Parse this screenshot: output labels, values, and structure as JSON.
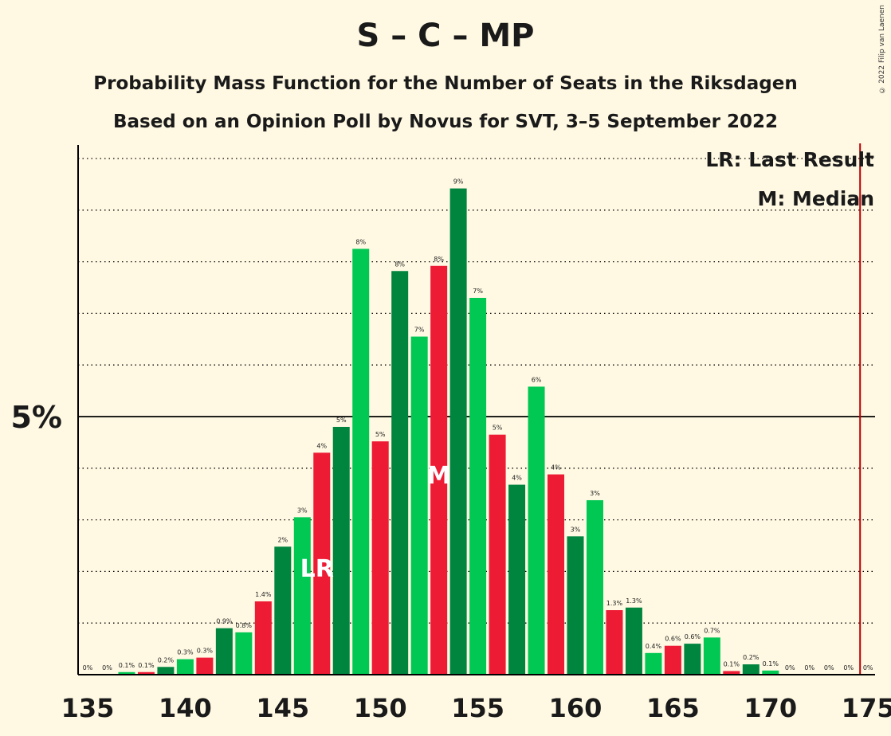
{
  "header": {
    "title": "S – C – MP",
    "subtitle": "Probability Mass Function for the Number of Seats in the Riksdagen",
    "subtitle2": "Based on an Opinion Poll by Novus for SVT, 3–5 September 2022",
    "copyright": "© 2022 Filip van Laenen"
  },
  "legend": {
    "last_result": "LR: Last Result",
    "median": "M: Median",
    "placement": "top-right"
  },
  "markers": {
    "last_result_label": "LR",
    "last_result_seat": 147,
    "median_label": "M",
    "median_seat": 153,
    "majority_seat": 175
  },
  "colors": {
    "background": "#FFF9E3",
    "green_light": "#00C853",
    "green_dark": "#00853F",
    "red": "#ED1B34",
    "majority_line": "#C00000",
    "axis": "#000000"
  },
  "chart_data": {
    "type": "bar",
    "xlabel": "",
    "ylabel": "",
    "xlim": [
      135,
      175
    ],
    "ylim": [
      0,
      10.2
    ],
    "x_ticks": [
      135,
      140,
      145,
      150,
      155,
      160,
      165,
      170,
      175
    ],
    "y_tick_label": "5%",
    "y_tick_value": 5,
    "grid": "dotted horizontal every 1%",
    "bars": [
      {
        "seat": 135,
        "value": 0,
        "label": "0%",
        "color": "red"
      },
      {
        "seat": 136,
        "value": 0,
        "label": "0%",
        "color": "red"
      },
      {
        "seat": 137,
        "value": 0.05,
        "label": "0.1%",
        "color": "green_light"
      },
      {
        "seat": 138,
        "value": 0.05,
        "label": "0.1%",
        "color": "red"
      },
      {
        "seat": 139,
        "value": 0.15,
        "label": "0.2%",
        "color": "green_dark"
      },
      {
        "seat": 140,
        "value": 0.3,
        "label": "0.3%",
        "color": "green_light"
      },
      {
        "seat": 141,
        "value": 0.33,
        "label": "0.3%",
        "color": "red"
      },
      {
        "seat": 142,
        "value": 0.9,
        "label": "0.9%",
        "color": "green_dark"
      },
      {
        "seat": 143,
        "value": 0.82,
        "label": "0.8%",
        "color": "green_light"
      },
      {
        "seat": 144,
        "value": 1.42,
        "label": "1.4%",
        "color": "red"
      },
      {
        "seat": 145,
        "value": 2.48,
        "label": "2%",
        "color": "green_dark"
      },
      {
        "seat": 146,
        "value": 3.05,
        "label": "3%",
        "color": "green_light"
      },
      {
        "seat": 147,
        "value": 4.3,
        "label": "4%",
        "color": "red"
      },
      {
        "seat": 148,
        "value": 4.8,
        "label": "5%",
        "color": "green_dark"
      },
      {
        "seat": 149,
        "value": 8.25,
        "label": "8%",
        "color": "green_light"
      },
      {
        "seat": 150,
        "value": 4.52,
        "label": "5%",
        "color": "red"
      },
      {
        "seat": 151,
        "value": 7.82,
        "label": "8%",
        "color": "green_dark"
      },
      {
        "seat": 152,
        "value": 6.55,
        "label": "7%",
        "color": "green_light"
      },
      {
        "seat": 153,
        "value": 7.92,
        "label": "8%",
        "color": "red"
      },
      {
        "seat": 154,
        "value": 9.42,
        "label": "9%",
        "color": "green_dark"
      },
      {
        "seat": 155,
        "value": 7.3,
        "label": "7%",
        "color": "green_light"
      },
      {
        "seat": 156,
        "value": 4.65,
        "label": "5%",
        "color": "red"
      },
      {
        "seat": 157,
        "value": 3.68,
        "label": "4%",
        "color": "green_dark"
      },
      {
        "seat": 158,
        "value": 5.58,
        "label": "6%",
        "color": "green_light"
      },
      {
        "seat": 159,
        "value": 3.88,
        "label": "4%",
        "color": "red"
      },
      {
        "seat": 160,
        "value": 2.68,
        "label": "3%",
        "color": "green_dark"
      },
      {
        "seat": 161,
        "value": 3.38,
        "label": "3%",
        "color": "green_light"
      },
      {
        "seat": 162,
        "value": 1.25,
        "label": "1.3%",
        "color": "red"
      },
      {
        "seat": 163,
        "value": 1.3,
        "label": "1.3%",
        "color": "green_dark"
      },
      {
        "seat": 164,
        "value": 0.42,
        "label": "0.4%",
        "color": "green_light"
      },
      {
        "seat": 165,
        "value": 0.56,
        "label": "0.6%",
        "color": "red"
      },
      {
        "seat": 166,
        "value": 0.6,
        "label": "0.6%",
        "color": "green_dark"
      },
      {
        "seat": 167,
        "value": 0.72,
        "label": "0.7%",
        "color": "green_light"
      },
      {
        "seat": 168,
        "value": 0.07,
        "label": "0.1%",
        "color": "red"
      },
      {
        "seat": 169,
        "value": 0.2,
        "label": "0.2%",
        "color": "green_dark"
      },
      {
        "seat": 170,
        "value": 0.08,
        "label": "0.1%",
        "color": "green_light"
      },
      {
        "seat": 171,
        "value": 0,
        "label": "0%",
        "color": "red"
      },
      {
        "seat": 172,
        "value": 0,
        "label": "0%",
        "color": "green_dark"
      },
      {
        "seat": 173,
        "value": 0,
        "label": "0%",
        "color": "green_light"
      },
      {
        "seat": 174,
        "value": 0,
        "label": "0%",
        "color": "red"
      },
      {
        "seat": 175,
        "value": 0,
        "label": "0%",
        "color": "green_dark"
      }
    ]
  }
}
